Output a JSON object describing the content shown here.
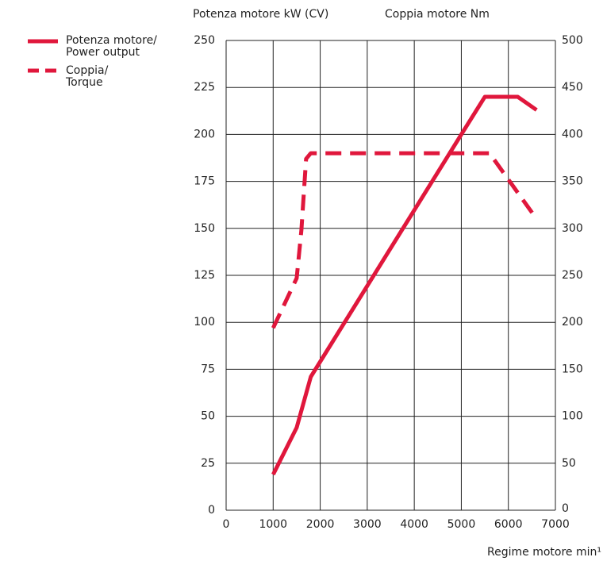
{
  "chart_data": {
    "type": "line",
    "y_label": "Potenza motore kW (CV)",
    "y2_label": "Coppia motore Nm",
    "x_label": "Regime motore min¹",
    "x": [
      1000,
      1500,
      1600,
      1700,
      1800,
      5000,
      5500,
      5600,
      6200,
      6600
    ],
    "series": [
      {
        "name": "Potenza motore/\nPower output",
        "color": "#e0173c",
        "style": "solid",
        "axis": "y",
        "values": [
          19,
          44,
          null,
          null,
          71,
          200,
          220,
          null,
          220,
          213
        ]
      },
      {
        "name": "Coppia/\nTorque",
        "color": "#e0173c",
        "style": "dashed",
        "axis": "y2",
        "values": [
          194,
          247,
          298,
          374,
          380,
          null,
          null,
          380,
          null,
          310
        ]
      }
    ],
    "xlim": [
      0,
      7000
    ],
    "xticks": [
      0,
      1000,
      2000,
      3000,
      4000,
      5000,
      6000,
      7000
    ],
    "ylim": [
      0,
      250
    ],
    "yticks": [
      0,
      25,
      50,
      75,
      100,
      125,
      150,
      175,
      200,
      225,
      250
    ],
    "y2lim": [
      0,
      500
    ],
    "y2ticks": [
      0,
      50,
      100,
      150,
      200,
      250,
      300,
      350,
      400,
      450,
      500
    ],
    "grid": true
  }
}
